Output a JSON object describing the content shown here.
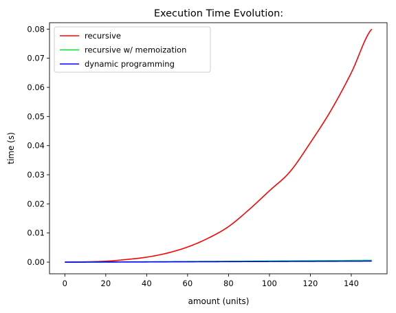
{
  "chart_data": {
    "type": "line",
    "title": "Execution Time Evolution:",
    "xlabel": "amount (units)",
    "ylabel": "time (s)",
    "xlim": [
      -7.5,
      157.5
    ],
    "ylim": [
      -0.004,
      0.0822
    ],
    "xticks": [
      0,
      20,
      40,
      60,
      80,
      100,
      120,
      140
    ],
    "xtick_labels": [
      "0",
      "20",
      "40",
      "60",
      "80",
      "100",
      "120",
      "140"
    ],
    "yticks": [
      0.0,
      0.01,
      0.02,
      0.03,
      0.04,
      0.05,
      0.06,
      0.07,
      0.08
    ],
    "ytick_labels": [
      "0.00",
      "0.01",
      "0.02",
      "0.03",
      "0.04",
      "0.05",
      "0.06",
      "0.07",
      "0.08"
    ],
    "grid": false,
    "legend_position": "top-left",
    "x": [
      0,
      10,
      20,
      30,
      40,
      50,
      60,
      70,
      80,
      90,
      100,
      110,
      120,
      130,
      140,
      150
    ],
    "series": [
      {
        "name": "recursive",
        "color": "#ff0000",
        "values": [
          0.0,
          0.0001,
          0.0003,
          0.0009,
          0.0017,
          0.0031,
          0.0052,
          0.0082,
          0.0122,
          0.018,
          0.0245,
          0.031,
          0.041,
          0.052,
          0.065,
          0.08
        ]
      },
      {
        "name": "recursive w/ memoization",
        "color": "#00dd33",
        "values": [
          0.0,
          2e-05,
          5e-05,
          8e-05,
          0.00011,
          0.00015,
          0.0002,
          0.00024,
          0.00028,
          0.00033,
          0.00038,
          0.00043,
          0.00048,
          0.00053,
          0.00058,
          0.00063
        ]
      },
      {
        "name": "dynamic programming",
        "color": "#0000ff",
        "values": [
          0.0,
          1e-05,
          3e-05,
          5e-05,
          7e-05,
          0.0001,
          0.00012,
          0.00015,
          0.00017,
          0.0002,
          0.00022,
          0.00025,
          0.00027,
          0.0003,
          0.00032,
          0.00035
        ]
      }
    ]
  }
}
